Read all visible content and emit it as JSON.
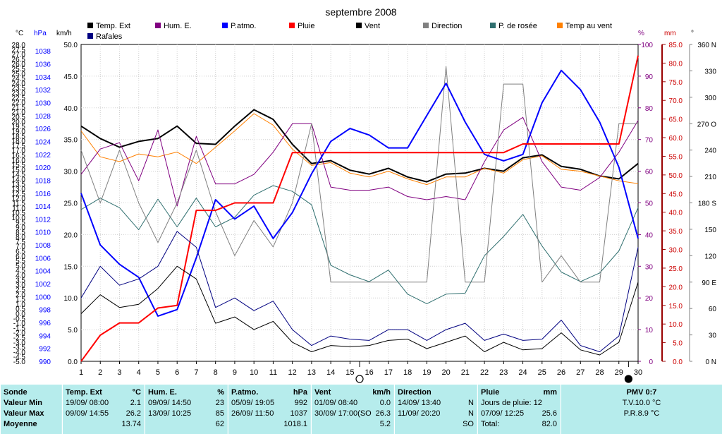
{
  "title": "septembre 2008",
  "legend": [
    {
      "label": "Temp. Ext",
      "color": "#000000"
    },
    {
      "label": "Hum. E.",
      "color": "#800080"
    },
    {
      "label": "P.atmo.",
      "color": "#0000ff"
    },
    {
      "label": "Pluie",
      "color": "#ff0000"
    },
    {
      "label": "Vent",
      "color": "#000000"
    },
    {
      "label": "Direction",
      "color": "#808080"
    },
    {
      "label": "P. de rosée",
      "color": "#2f6f6f"
    },
    {
      "label": "Temp au vent",
      "color": "#ff8000"
    },
    {
      "label": "Rafales",
      "color": "#000080"
    }
  ],
  "units": {
    "temp": "°C",
    "press": "hPa",
    "wind": "km/h",
    "hum": "%",
    "rain": "mm",
    "dir": "°"
  },
  "chart_data": {
    "type": "line",
    "x": [
      1,
      2,
      3,
      4,
      5,
      6,
      7,
      8,
      9,
      10,
      11,
      12,
      13,
      14,
      15,
      16,
      17,
      18,
      19,
      20,
      21,
      22,
      23,
      24,
      25,
      26,
      27,
      28,
      29,
      30
    ],
    "xlim": [
      1,
      30
    ],
    "axes": {
      "temp": {
        "min": -5.0,
        "max": 28.0,
        "step": 0.5,
        "label_step": 1
      },
      "press": {
        "min": 990,
        "max": 1039,
        "label_step": 2
      },
      "wind": {
        "min": 0.0,
        "max": 50.0,
        "step": 5
      },
      "hum": {
        "min": 0,
        "max": 100,
        "step": 10
      },
      "rain": {
        "min": 0.0,
        "max": 85.0,
        "step": 5
      },
      "dir": {
        "ticks": [
          [
            "0 N",
            0
          ],
          [
            "30",
            30
          ],
          [
            "60",
            60
          ],
          [
            "90 E",
            90
          ],
          [
            "120",
            120
          ],
          [
            "150",
            150
          ],
          [
            "180 S",
            180
          ],
          [
            "210",
            210
          ],
          [
            "240",
            240
          ],
          [
            "270 O",
            270
          ],
          [
            "300",
            300
          ],
          [
            "330",
            330
          ],
          [
            "360 N",
            360
          ]
        ]
      }
    },
    "series": [
      {
        "name": "Temp. Ext",
        "axis": "temp",
        "color": "#000000",
        "width": 2,
        "values": [
          19.5,
          18.2,
          17.3,
          17.9,
          18.2,
          19.5,
          17.7,
          17.6,
          19.5,
          21.2,
          20.2,
          17.6,
          15.6,
          15.9,
          14.9,
          14.5,
          15.1,
          14.2,
          13.7,
          14.5,
          14.6,
          15.1,
          14.8,
          16.2,
          16.5,
          15.3,
          15.0,
          14.3,
          14.0,
          15.6
        ]
      },
      {
        "name": "Temp au vent",
        "axis": "temp",
        "color": "#ff8000",
        "width": 1,
        "values": [
          19.0,
          16.3,
          15.8,
          16.6,
          16.3,
          16.8,
          15.6,
          17.3,
          19.0,
          20.8,
          19.6,
          17.1,
          15.4,
          15.7,
          14.6,
          14.2,
          14.8,
          14.0,
          13.4,
          14.2,
          14.2,
          15.1,
          14.6,
          16.0,
          16.4,
          15.0,
          14.8,
          14.3,
          13.8,
          13.5
        ]
      },
      {
        "name": "P. de rosée",
        "axis": "temp",
        "color": "#2f6f6f",
        "width": 1,
        "values": [
          10.8,
          12.0,
          11.0,
          8.7,
          11.9,
          9.0,
          12.0,
          9.0,
          10.0,
          12.3,
          13.3,
          12.7,
          11.3,
          5.0,
          4.0,
          3.3,
          4.5,
          2.0,
          1.0,
          2.0,
          2.1,
          6.0,
          8.0,
          10.3,
          7.0,
          4.3,
          3.3,
          4.2,
          6.5,
          11.0
        ]
      },
      {
        "name": "Hum. E.",
        "axis": "hum",
        "color": "#800080",
        "width": 1,
        "values": [
          59,
          67,
          69,
          57,
          73,
          49,
          71,
          56,
          56,
          59,
          66,
          75,
          75,
          55,
          54,
          54,
          55,
          52,
          51,
          52,
          51,
          63,
          73,
          77,
          63,
          55,
          54,
          58,
          66,
          76
        ]
      },
      {
        "name": "Direction",
        "axis": "dir",
        "color": "#808080",
        "width": 1,
        "values": [
          240,
          180,
          240,
          180,
          135,
          180,
          240,
          170,
          120,
          160,
          130,
          180,
          270,
          90,
          90,
          90,
          90,
          90,
          90,
          335,
          90,
          90,
          315,
          315,
          90,
          120,
          90,
          90,
          270,
          270
        ]
      },
      {
        "name": "P.atmo.",
        "axis": "press",
        "color": "#0000ff",
        "width": 2,
        "values": [
          1016,
          1008,
          1005,
          1003,
          997,
          998,
          1006,
          1015,
          1012,
          1014,
          1009,
          1013,
          1019,
          1024,
          1026,
          1025,
          1023,
          1023,
          1028,
          1033,
          1027,
          1022,
          1021,
          1022,
          1030,
          1035,
          1032,
          1027,
          1020,
          1009
        ]
      },
      {
        "name": "Pluie",
        "axis": "rain",
        "color": "#ff0000",
        "width": 2,
        "values": [
          0.0,
          7.0,
          10.3,
          10.3,
          14.3,
          15.0,
          40.5,
          40.5,
          42.5,
          42.5,
          42.5,
          56.0,
          56.0,
          56.0,
          56.0,
          56.0,
          56.0,
          56.0,
          56.0,
          56.0,
          56.0,
          56.0,
          56.0,
          58.3,
          58.3,
          58.3,
          58.3,
          58.3,
          58.3,
          82.0
        ]
      },
      {
        "name": "Rafales",
        "axis": "wind",
        "color": "#000080",
        "width": 1,
        "values": [
          10.0,
          15.0,
          12.0,
          13.0,
          15.0,
          20.5,
          18.0,
          8.5,
          10.0,
          8.0,
          9.5,
          5.0,
          2.5,
          4.0,
          3.5,
          3.3,
          5.0,
          5.0,
          3.3,
          5.0,
          6.0,
          3.3,
          4.3,
          3.3,
          3.5,
          6.5,
          2.5,
          1.5,
          4.0,
          18.0
        ]
      },
      {
        "name": "Vent",
        "axis": "wind",
        "color": "#000000",
        "width": 1,
        "values": [
          7.5,
          10.5,
          8.5,
          9.0,
          11.5,
          15.0,
          13.0,
          6.0,
          7.0,
          5.0,
          6.3,
          3.0,
          1.5,
          2.5,
          2.3,
          2.5,
          3.3,
          3.5,
          2.0,
          3.0,
          4.0,
          1.5,
          3.0,
          1.8,
          2.0,
          4.5,
          1.8,
          1.0,
          3.0,
          12.5
        ]
      }
    ],
    "moon_marks": [
      {
        "x": 15.5,
        "phase": "full"
      },
      {
        "x": 29.5,
        "phase": "new"
      }
    ]
  },
  "stats": {
    "row_labels": [
      "Sonde",
      "Valeur Min",
      "Valeur Max",
      "Moyenne"
    ],
    "columns": [
      {
        "key": "temp",
        "header": "Temp. Ext",
        "unit": "°C",
        "min": {
          "date": "19/09/  08:00",
          "val": "2.1"
        },
        "max": {
          "date": "09/09/  14:55",
          "val": "26.2"
        },
        "avg": "13.74"
      },
      {
        "key": "hum",
        "header": "Hum. E.",
        "unit": "%",
        "min": {
          "date": "09/09/  14:50",
          "val": "23"
        },
        "max": {
          "date": "13/09/  10:25",
          "val": "85"
        },
        "avg": "62"
      },
      {
        "key": "press",
        "header": "P.atmo.",
        "unit": "hPa",
        "min": {
          "date": "05/09/  19:05",
          "val": "992"
        },
        "max": {
          "date": "26/09/  11:50",
          "val": "1037"
        },
        "avg": "1018.1"
      },
      {
        "key": "wind",
        "header": "Vent",
        "unit": "km/h",
        "min": {
          "date": "01/09/  08:40",
          "val": "0.0"
        },
        "max": {
          "date": "30/09/  17:00(SO",
          "val": "26.3"
        },
        "avg": "5.2"
      },
      {
        "key": "dir",
        "header": "Direction",
        "unit": "",
        "min": {
          "date": "14/09/  13:40",
          "val": "N"
        },
        "max": {
          "date": "11/09/  20:20",
          "val": "N"
        },
        "avg": "SO"
      },
      {
        "key": "rain",
        "header": "Pluie",
        "unit": "mm",
        "min": {
          "date": "Jours de pluie: 12",
          "val": ""
        },
        "max": {
          "date": "07/09/  12:25",
          "val": "25.6"
        },
        "avg_label": "Total:",
        "avg": "82.0"
      }
    ],
    "pmv": {
      "title": "PMV 0:7",
      "tv": "T.V.10.0 °C",
      "pr": "P.R.8.9 °C"
    }
  }
}
